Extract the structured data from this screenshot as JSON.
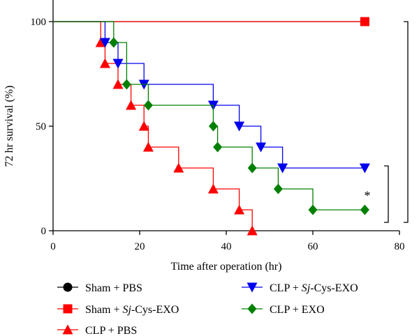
{
  "chart_data": {
    "type": "line",
    "step": true,
    "xlabel": "Time after operation (hr)",
    "ylabel": "72 hr survival (%)",
    "xlim": [
      0,
      80
    ],
    "ylim": [
      0,
      100
    ],
    "xticks": [
      0,
      20,
      40,
      60,
      80
    ],
    "yticks": [
      0,
      50,
      100
    ],
    "grid": false,
    "legend_position": "bottom",
    "series": [
      {
        "name": "Sham + PBS",
        "name_parts": [
          "Sham + PBS"
        ],
        "color": "#000000",
        "marker": "circle",
        "x": [
          0,
          72
        ],
        "y": [
          100,
          100
        ]
      },
      {
        "name": "Sham + Sj-Cys-EXO",
        "name_parts": [
          "Sham + ",
          "Sj",
          "-Cys-EXO"
        ],
        "color": "#ff0000",
        "marker": "square",
        "x": [
          0,
          72
        ],
        "y": [
          100,
          100
        ]
      },
      {
        "name": "CLP + PBS",
        "name_parts": [
          "CLP + PBS"
        ],
        "color": "#ff0000",
        "marker": "triangle-up",
        "x": [
          0,
          11,
          12,
          15,
          18,
          21,
          22,
          29,
          37,
          43,
          46
        ],
        "y": [
          100,
          90,
          80,
          70,
          60,
          50,
          40,
          30,
          20,
          10,
          0
        ]
      },
      {
        "name": "CLP + Sj-Cys-EXO",
        "name_parts": [
          "CLP + ",
          "Sj",
          "-Cys-EXO"
        ],
        "color": "#0000ee",
        "marker": "triangle-down",
        "x": [
          0,
          12,
          15,
          21,
          37,
          43,
          48,
          53,
          72
        ],
        "y": [
          100,
          90,
          80,
          70,
          60,
          50,
          40,
          30,
          30
        ]
      },
      {
        "name": "CLP + EXO",
        "name_parts": [
          "CLP + EXO"
        ],
        "color": "#008000",
        "marker": "diamond",
        "x": [
          0,
          14,
          17,
          22,
          37,
          38,
          46,
          52,
          60,
          72
        ],
        "y": [
          100,
          90,
          70,
          60,
          50,
          40,
          30,
          20,
          10,
          10
        ]
      }
    ],
    "annotations": [
      {
        "label": "* * *",
        "from_y": 100,
        "to_y": 2
      },
      {
        "label": "*",
        "from_y": 31,
        "to_y": 2
      }
    ]
  }
}
